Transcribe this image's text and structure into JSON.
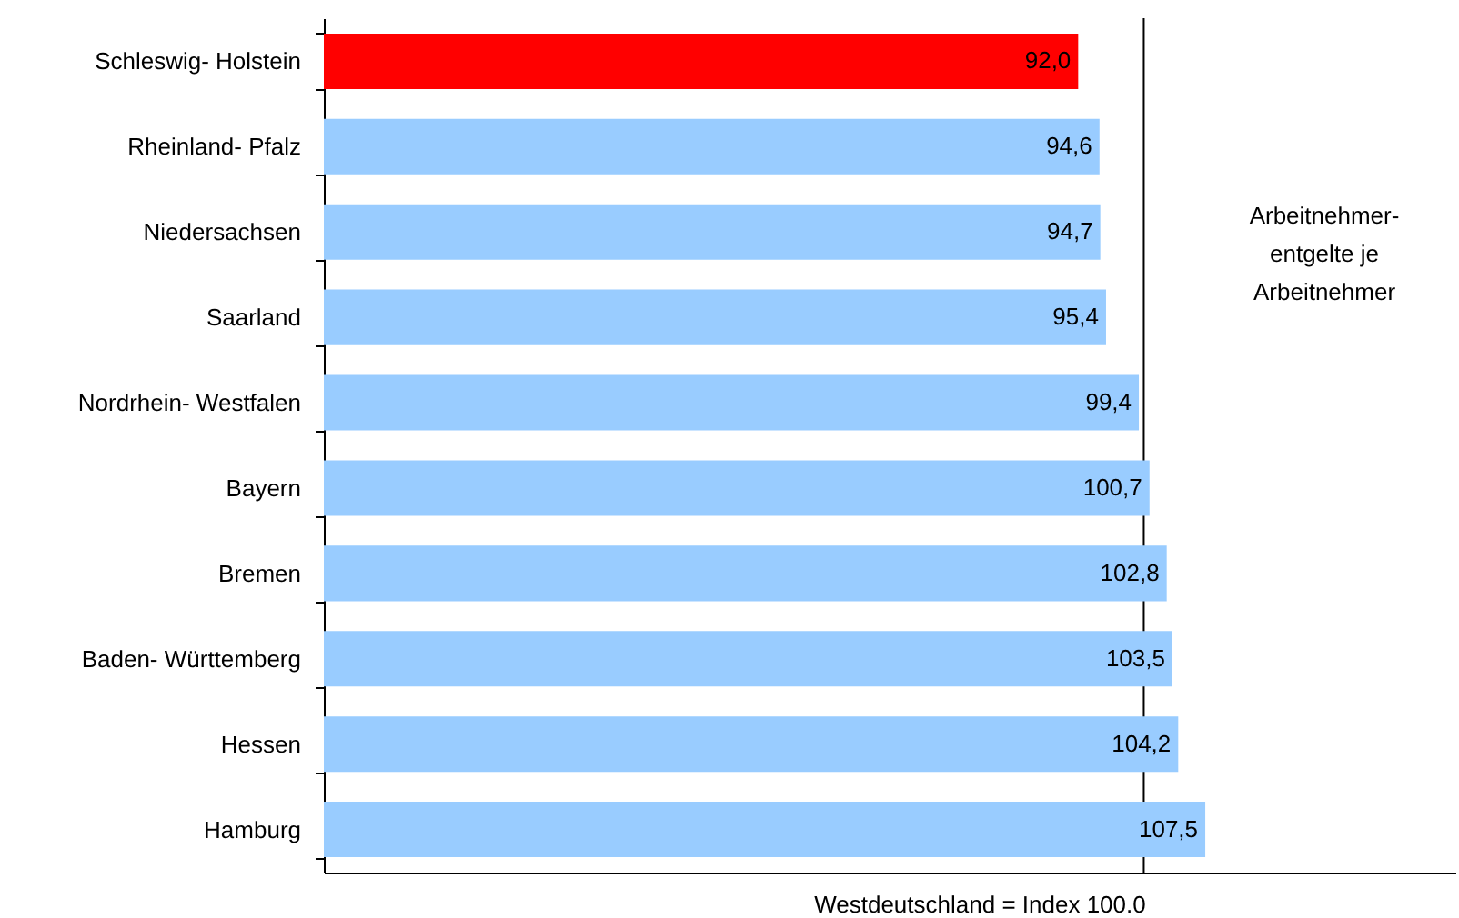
{
  "chart_data": {
    "type": "bar",
    "orientation": "horizontal",
    "categories": [
      "Schleswig- Holstein",
      "Rheinland- Pfalz",
      "Niedersachsen",
      "Saarland",
      "Nordrhein- Westfalen",
      "Bayern",
      "Bremen",
      "Baden- Württemberg",
      "Hessen",
      "Hamburg"
    ],
    "values": [
      92.0,
      94.6,
      94.7,
      95.4,
      99.4,
      100.7,
      102.8,
      103.5,
      104.2,
      107.5
    ],
    "colors": [
      "#ff0000",
      "#99ccff",
      "#99ccff",
      "#99ccff",
      "#99ccff",
      "#99ccff",
      "#99ccff",
      "#99ccff",
      "#99ccff",
      "#99ccff"
    ],
    "value_labels": [
      "92,0",
      "94,6",
      "94,7",
      "95,4",
      "99,4",
      "100,7",
      "102,8",
      "103,5",
      "104,2",
      "107,5"
    ],
    "xlim": [
      0,
      138
    ],
    "ref_lines": [
      {
        "axis": "x",
        "value": 100,
        "label": "Westdeutschland = Index 100.0",
        "color": "#000000"
      }
    ],
    "annotations": [
      "Arbeitnehmer-entgelte je Arbeitnehmer"
    ]
  }
}
